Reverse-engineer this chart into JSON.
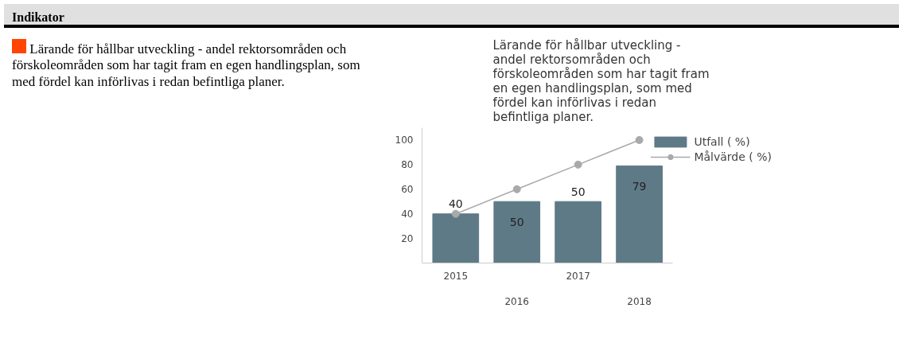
{
  "chart_data": {
    "type": "bar",
    "title": "Lärande för hållbar utveckling - andel rektorsområden och förskoleområden som har tagit fram en egen handlingsplan, som med fördel kan införlivas i redan befintliga planer.",
    "annotations": [
      "Indikator",
      "Lärande för hållbar utveckling - andel rektorsområden och förskoleområden som har tagit fram en egen handlingsplan, som med fördel kan införlivas i redan befintliga planer."
    ],
    "categories": [
      "2015",
      "2016",
      "2017",
      "2018"
    ],
    "series": [
      {
        "name": "Utfall ( %)",
        "color": "#5f7a87",
        "values": [
          40,
          50,
          50,
          79
        ],
        "value_labels": [
          "40",
          "50",
          "50",
          "79"
        ]
      },
      {
        "name": "Målvärde ( %)",
        "type": "line",
        "color": "#a9a9a9",
        "values": [
          40,
          60,
          80,
          100
        ],
        "marker": "circle"
      }
    ],
    "ylim": [
      0,
      110
    ],
    "yticks": [
      20,
      40,
      60,
      80,
      100
    ],
    "grid": false,
    "legend": "right"
  }
}
